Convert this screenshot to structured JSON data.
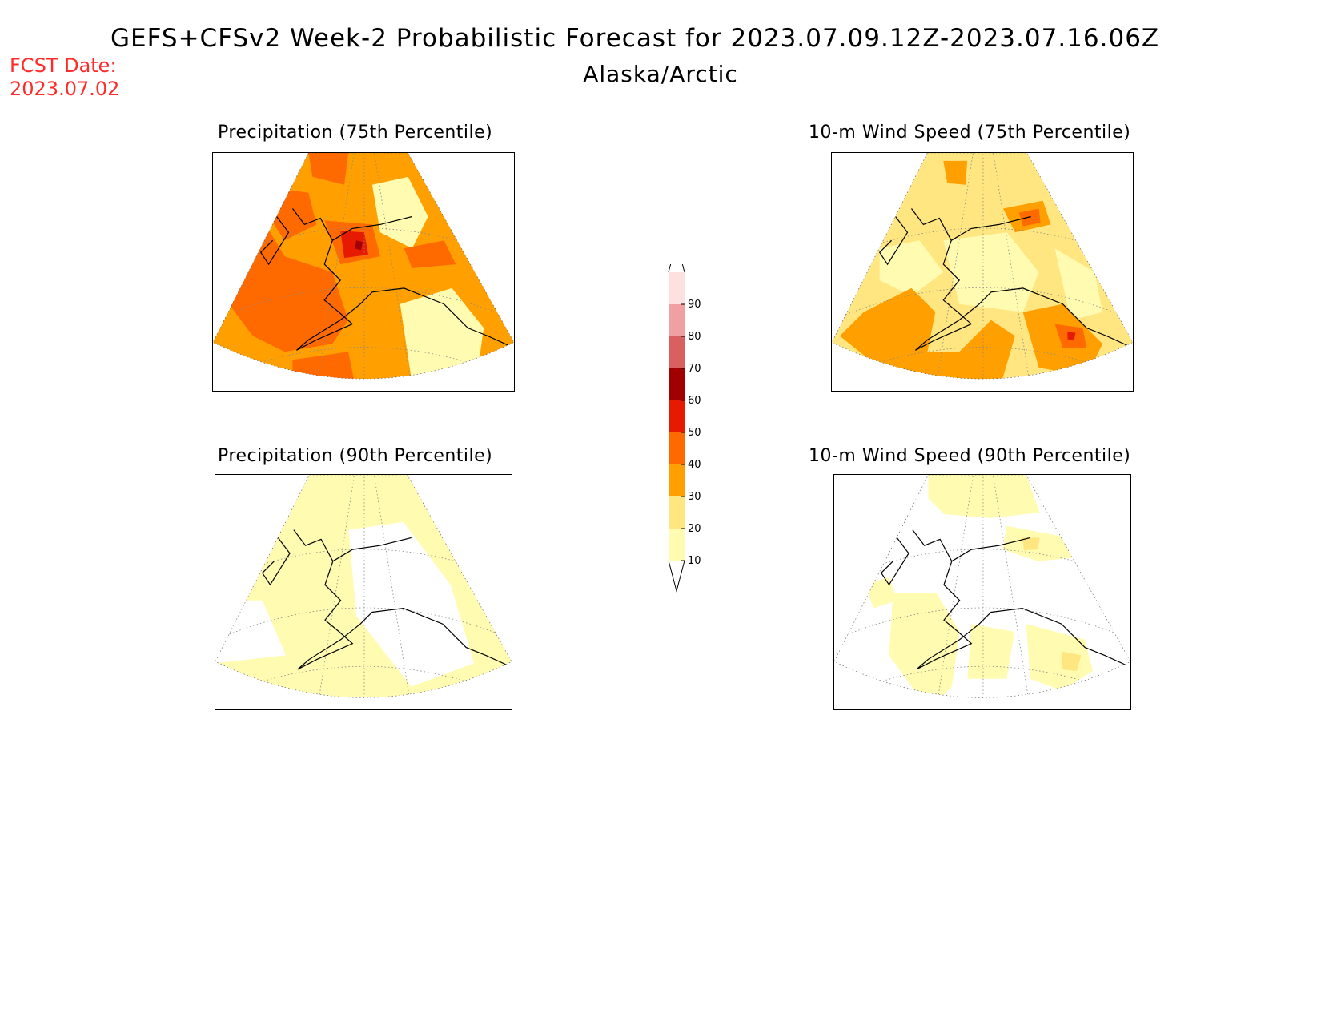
{
  "header": {
    "title": "GEFS+CFSv2 Week-2 Probabilistic Forecast for 2023.07.09.12Z-2023.07.16.06Z",
    "region": "Alaska/Arctic",
    "fcst_label": "FCST Date:",
    "fcst_date": "2023.07.02",
    "fcst_color": "#ff2a2a"
  },
  "panels": [
    {
      "id": "precip-75",
      "title": "Precipitation (75th Percentile)",
      "dominant_level": 30
    },
    {
      "id": "wind-75",
      "title": "10-m Wind Speed (75th Percentile)",
      "dominant_level": 20
    },
    {
      "id": "precip-90",
      "title": "Precipitation (90th Percentile)",
      "dominant_level": 10
    },
    {
      "id": "wind-90",
      "title": "10-m Wind Speed (90th Percentile)",
      "dominant_level": 0
    }
  ],
  "colorbar": {
    "levels": [
      "10",
      "20",
      "30",
      "40",
      "50",
      "60",
      "70",
      "80",
      "90"
    ],
    "colors": [
      "#fffbb0",
      "#ffe680",
      "#ffa000",
      "#ff6a00",
      "#e61a00",
      "#a00000",
      "#d96060",
      "#f0a0a0",
      "#fde0e0"
    ]
  }
}
